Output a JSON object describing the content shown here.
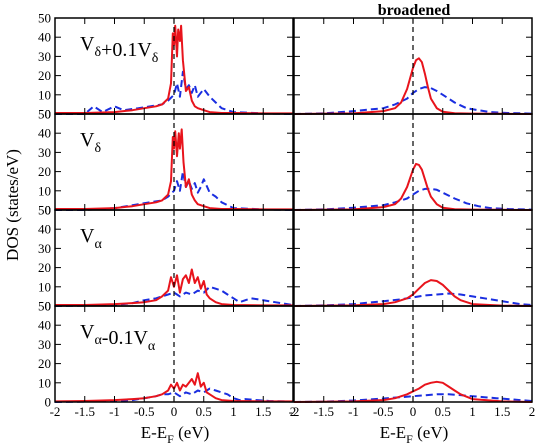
{
  "chart_data": {
    "type": "line",
    "title": "broadened",
    "xlabel": {
      "base": "E-E",
      "sub": "F",
      "unit": " (eV)"
    },
    "ylabel": "DOS  (states/eV)",
    "xlim": [
      -2,
      2
    ],
    "ylim": [
      0,
      50
    ],
    "x_ticks": [
      -2,
      -1.5,
      -1,
      -0.5,
      0,
      0.5,
      1,
      1.5,
      2
    ],
    "x_tick_labels_left": [
      "-2",
      "-1.5",
      "-1",
      "-0.5",
      "0",
      "0.5",
      "1",
      "1.5",
      "2"
    ],
    "x_tick_labels_right": [
      "-2",
      "-1.5",
      "-1",
      "-0.5",
      "0",
      "0.5",
      "1",
      "1.5",
      "2"
    ],
    "y_ticks": [
      0,
      10,
      20,
      30,
      40,
      50
    ],
    "y_tick_labels": [
      "0",
      "10",
      "20",
      "30",
      "40",
      "50"
    ],
    "fermi_line_x": 0,
    "colors": {
      "solid": "#e8141c",
      "dashed": "#1a2ee0",
      "fermi": "#000000"
    },
    "rows": [
      {
        "label": {
          "parts": [
            {
              "t": "V",
              "sub": false
            },
            {
              "t": "δ",
              "sub": true
            },
            {
              "t": "+0.1V",
              "sub": false
            },
            {
              "t": "δ",
              "sub": true
            }
          ]
        },
        "raw_solid": {
          "x": [
            -2,
            -1.5,
            -1,
            -0.7,
            -0.5,
            -0.3,
            -0.2,
            -0.1,
            -0.05,
            -0.02,
            0,
            0.02,
            0.05,
            0.07,
            0.1,
            0.12,
            0.15,
            0.2,
            0.25,
            0.3,
            0.35,
            0.4,
            0.5,
            0.6,
            0.8,
            1,
            1.5,
            2
          ],
          "y": [
            0.5,
            0.5,
            1,
            2,
            3,
            4,
            5,
            8,
            16,
            42,
            36,
            46,
            30,
            44,
            38,
            46,
            28,
            12,
            14,
            7,
            4,
            3,
            2,
            1,
            0.5,
            0.5,
            0.3,
            0.3
          ]
        },
        "raw_dashed": {
          "x": [
            -2,
            -1.5,
            -1.35,
            -1.2,
            -1,
            -0.85,
            -0.6,
            -0.4,
            -0.2,
            -0.1,
            0,
            0.05,
            0.1,
            0.15,
            0.2,
            0.25,
            0.3,
            0.35,
            0.4,
            0.5,
            0.6,
            0.7,
            0.8,
            1,
            1.5,
            2
          ],
          "y": [
            0,
            0,
            4,
            1,
            4,
            2,
            3,
            4,
            5,
            7,
            10,
            16,
            9,
            22,
            13,
            15,
            11,
            15,
            9,
            13,
            9,
            6,
            3,
            1,
            0.3,
            0
          ]
        },
        "broad_solid": {
          "x": [
            -2,
            -1,
            -0.5,
            -0.3,
            -0.2,
            -0.1,
            0,
            0.05,
            0.1,
            0.15,
            0.2,
            0.25,
            0.3,
            0.4,
            0.5,
            0.7,
            1,
            1.5,
            2
          ],
          "y": [
            0,
            0.3,
            1.5,
            3,
            6,
            13,
            24,
            28,
            29,
            27,
            21,
            14,
            8,
            3,
            1.2,
            0.4,
            0.2,
            0.1,
            0
          ]
        },
        "broad_dashed": {
          "x": [
            -2,
            -1.5,
            -1,
            -0.5,
            -0.3,
            -0.1,
            0,
            0.1,
            0.2,
            0.3,
            0.4,
            0.5,
            0.7,
            0.9,
            1.1,
            1.3,
            1.6,
            2
          ],
          "y": [
            0,
            0.3,
            1.5,
            3,
            5,
            8,
            11,
            13,
            14,
            13.5,
            12,
            10,
            6,
            3,
            2,
            1,
            0.5,
            0.2
          ]
        }
      },
      {
        "label": {
          "parts": [
            {
              "t": "V",
              "sub": false
            },
            {
              "t": "δ",
              "sub": true
            }
          ]
        },
        "raw_solid": {
          "x": [
            -2,
            -1.5,
            -1,
            -0.7,
            -0.5,
            -0.3,
            -0.2,
            -0.1,
            -0.05,
            -0.02,
            0,
            0.02,
            0.05,
            0.08,
            0.1,
            0.13,
            0.16,
            0.2,
            0.25,
            0.3,
            0.35,
            0.4,
            0.5,
            0.6,
            0.8,
            1,
            1.5,
            2
          ],
          "y": [
            0.5,
            0.5,
            1,
            2,
            3,
            4,
            5,
            8,
            15,
            38,
            32,
            41,
            28,
            40,
            32,
            42,
            25,
            12,
            16,
            8,
            5,
            3,
            2,
            1,
            0.5,
            0.5,
            0.3,
            0.3
          ]
        },
        "raw_dashed": {
          "x": [
            -2,
            -1.5,
            -1,
            -0.8,
            -0.6,
            -0.4,
            -0.2,
            -0.1,
            0,
            0.05,
            0.1,
            0.15,
            0.2,
            0.25,
            0.3,
            0.35,
            0.4,
            0.45,
            0.5,
            0.6,
            0.7,
            0.8,
            1,
            1.5,
            2
          ],
          "y": [
            0,
            0,
            1,
            2,
            3,
            4,
            5,
            7,
            10,
            15,
            10,
            20,
            12,
            15,
            11,
            14,
            9,
            12,
            16,
            9,
            7,
            4,
            1,
            0.3,
            0
          ]
        },
        "broad_solid": {
          "x": [
            -2,
            -1,
            -0.5,
            -0.3,
            -0.2,
            -0.1,
            0,
            0.05,
            0.1,
            0.15,
            0.2,
            0.25,
            0.3,
            0.4,
            0.5,
            0.7,
            1,
            1.5,
            2
          ],
          "y": [
            0,
            0.3,
            1.5,
            3,
            6,
            12,
            21,
            24,
            23.5,
            21,
            16,
            11,
            7,
            3,
            1.2,
            0.4,
            0.2,
            0.1,
            0
          ]
        },
        "broad_dashed": {
          "x": [
            -2,
            -1.5,
            -1,
            -0.5,
            -0.3,
            -0.1,
            0,
            0.1,
            0.2,
            0.3,
            0.4,
            0.5,
            0.7,
            0.9,
            1.1,
            1.3,
            1.6,
            2
          ],
          "y": [
            0,
            0.3,
            1.2,
            2.5,
            4,
            6,
            8,
            10,
            11,
            11,
            10.5,
            9,
            6,
            3.5,
            2,
            1,
            0.5,
            0.2
          ]
        }
      },
      {
        "label": {
          "parts": [
            {
              "t": "V",
              "sub": false
            },
            {
              "t": "α",
              "sub": true
            }
          ]
        },
        "raw_solid": {
          "x": [
            -2,
            -1.5,
            -1,
            -0.7,
            -0.5,
            -0.3,
            -0.2,
            -0.1,
            -0.05,
            0,
            0.05,
            0.1,
            0.15,
            0.2,
            0.25,
            0.3,
            0.35,
            0.4,
            0.45,
            0.5,
            0.55,
            0.6,
            0.7,
            0.8,
            1,
            1.5,
            2
          ],
          "y": [
            0.5,
            0.5,
            1,
            1.5,
            2,
            3,
            5,
            8,
            15,
            10,
            16,
            7,
            14,
            16,
            12,
            19,
            12,
            15,
            9,
            13,
            6,
            4,
            2,
            1,
            0.5,
            0.3,
            0.3
          ]
        },
        "raw_dashed": {
          "x": [
            -2,
            -1.5,
            -1,
            -0.7,
            -0.5,
            -0.3,
            -0.2,
            -0.1,
            0,
            0.05,
            0.1,
            0.2,
            0.3,
            0.4,
            0.5,
            0.6,
            0.7,
            0.8,
            0.9,
            1,
            1.1,
            1.2,
            1.3,
            1.5,
            1.7,
            2
          ],
          "y": [
            0,
            0.2,
            0.5,
            1.5,
            3,
            4,
            5,
            6,
            7,
            6,
            5,
            7,
            6,
            8,
            7,
            10,
            9,
            8,
            6,
            4,
            2,
            3,
            4,
            3,
            2,
            0.5
          ]
        },
        "broad_solid": {
          "x": [
            -2,
            -1,
            -0.5,
            -0.3,
            -0.1,
            0,
            0.1,
            0.2,
            0.3,
            0.4,
            0.5,
            0.6,
            0.7,
            0.8,
            1,
            1.5,
            2
          ],
          "y": [
            0,
            0.3,
            1,
            2,
            4,
            6,
            9,
            12,
            13.5,
            13,
            11,
            8,
            5,
            3,
            1,
            0.2,
            0
          ]
        },
        "broad_dashed": {
          "x": [
            -2,
            -1.5,
            -1,
            -0.5,
            -0.2,
            0,
            0.2,
            0.4,
            0.6,
            0.8,
            1,
            1.2,
            1.4,
            1.6,
            1.8,
            2
          ],
          "y": [
            0,
            0.3,
            1,
            2.5,
            3.5,
            4.5,
            5.5,
            6,
            6.5,
            6,
            5,
            4,
            3,
            2,
            1,
            0.5
          ]
        }
      },
      {
        "label": {
          "parts": [
            {
              "t": "V",
              "sub": false
            },
            {
              "t": "α",
              "sub": true
            },
            {
              "t": "-0.1V",
              "sub": false
            },
            {
              "t": "α",
              "sub": true
            }
          ]
        },
        "raw_solid": {
          "x": [
            -2,
            -1.5,
            -1,
            -0.7,
            -0.5,
            -0.3,
            -0.2,
            -0.1,
            -0.05,
            0,
            0.05,
            0.1,
            0.15,
            0.2,
            0.25,
            0.3,
            0.35,
            0.4,
            0.45,
            0.5,
            0.55,
            0.6,
            0.7,
            0.8,
            1,
            1.5,
            2
          ],
          "y": [
            0.3,
            0.5,
            1,
            1.5,
            2,
            3,
            4,
            6,
            9,
            7,
            10,
            6,
            9,
            8,
            10,
            12,
            9,
            15,
            8,
            10,
            5,
            4,
            2,
            1,
            0.5,
            0.3,
            0.3
          ]
        },
        "raw_dashed": {
          "x": [
            -2,
            -1.5,
            -1,
            -0.7,
            -0.5,
            -0.3,
            -0.2,
            -0.1,
            0,
            0.05,
            0.1,
            0.2,
            0.3,
            0.4,
            0.5,
            0.6,
            0.7,
            0.8,
            0.9,
            1,
            1.1,
            1.2,
            1.4,
            1.6,
            2
          ],
          "y": [
            0,
            0.2,
            0.5,
            1,
            2,
            3,
            4,
            4,
            5,
            4,
            3,
            5,
            4,
            6,
            5,
            7,
            6,
            5,
            4,
            2,
            1,
            1.5,
            1,
            0.5,
            0.2
          ]
        },
        "broad_solid": {
          "x": [
            -2,
            -1,
            -0.5,
            -0.3,
            -0.1,
            0,
            0.1,
            0.2,
            0.3,
            0.4,
            0.5,
            0.6,
            0.7,
            0.8,
            1,
            1.5,
            2
          ],
          "y": [
            0,
            0.3,
            1,
            2,
            4,
            5.5,
            7,
            9,
            10,
            10.5,
            10,
            8,
            6,
            4,
            1.5,
            0.3,
            0
          ]
        },
        "broad_dashed": {
          "x": [
            -2,
            -1.5,
            -1,
            -0.5,
            -0.2,
            0,
            0.2,
            0.4,
            0.6,
            0.8,
            1,
            1.2,
            1.4,
            1.6,
            1.8,
            2
          ],
          "y": [
            0,
            0.2,
            0.8,
            1.8,
            2.5,
            3,
            3.5,
            4,
            4,
            3.6,
            3,
            2.5,
            2,
            1.5,
            1,
            0.5
          ]
        }
      }
    ]
  }
}
